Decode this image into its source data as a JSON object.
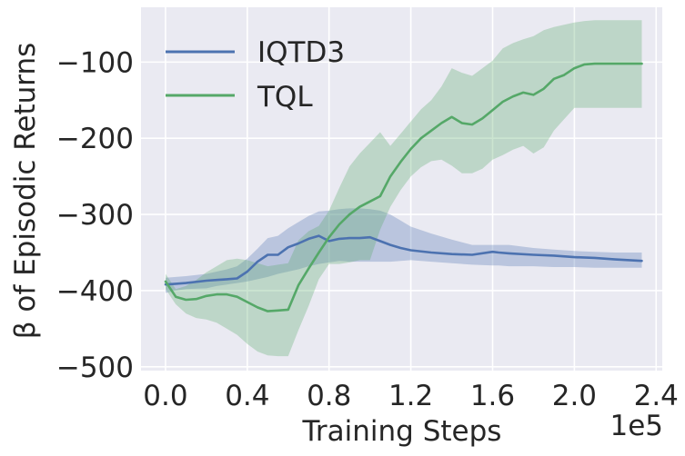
{
  "chart_data": {
    "type": "line",
    "title": "",
    "xlabel": "Training Steps",
    "ylabel": "β of Episodic Returns",
    "x_offset_label": "1e5",
    "xlim": [
      -0.12,
      2.43
    ],
    "ylim": [
      -505,
      -28
    ],
    "x_ticks": [
      0.0,
      0.4,
      0.8,
      1.2,
      1.6,
      2.0,
      2.4
    ],
    "x_tick_labels": [
      "0.0",
      "0.4",
      "0.8",
      "1.2",
      "1.6",
      "2.0",
      "2.4"
    ],
    "y_ticks": [
      -500,
      -400,
      -300,
      -200,
      -100
    ],
    "y_tick_labels": [
      "−500",
      "−400",
      "−300",
      "−200",
      "−100"
    ],
    "grid": true,
    "legend_position": "top-left",
    "series": [
      {
        "name": "IQTD3",
        "color": "#4c72b0",
        "x": [
          0.0,
          0.05,
          0.1,
          0.2,
          0.25,
          0.3,
          0.35,
          0.4,
          0.45,
          0.5,
          0.55,
          0.6,
          0.65,
          0.7,
          0.75,
          0.8,
          0.85,
          0.9,
          0.95,
          1.0,
          1.05,
          1.1,
          1.15,
          1.2,
          1.3,
          1.4,
          1.5,
          1.6,
          1.63,
          1.68,
          1.8,
          1.9,
          2.0,
          2.1,
          2.2,
          2.33
        ],
        "mean": [
          -392,
          -391,
          -390,
          -387,
          -386,
          -385,
          -384,
          -375,
          -362,
          -353,
          -353,
          -343,
          -338,
          -332,
          -328,
          -335,
          -332,
          -331,
          -331,
          -330,
          -335,
          -340,
          -344,
          -347,
          -350,
          -352,
          -353,
          -349,
          -350,
          -351,
          -353,
          -354,
          -356,
          -357,
          -359,
          -361
        ],
        "lower": [
          -403,
          -400,
          -398,
          -397,
          -394,
          -392,
          -390,
          -388,
          -385,
          -382,
          -378,
          -375,
          -372,
          -368,
          -365,
          -363,
          -361,
          -362,
          -362,
          -362,
          -362,
          -362,
          -361,
          -360,
          -362,
          -364,
          -366,
          -367,
          -367,
          -368,
          -368,
          -369,
          -369,
          -370,
          -370,
          -370
        ],
        "upper": [
          -383,
          -382,
          -381,
          -378,
          -375,
          -372,
          -368,
          -358,
          -345,
          -331,
          -328,
          -318,
          -310,
          -302,
          -296,
          -295,
          -293,
          -292,
          -292,
          -293,
          -295,
          -300,
          -308,
          -316,
          -325,
          -333,
          -340,
          -340,
          -340,
          -340,
          -344,
          -346,
          -348,
          -349,
          -350,
          -350
        ]
      },
      {
        "name": "TQL",
        "color": "#55a868",
        "x": [
          0.0,
          0.05,
          0.1,
          0.15,
          0.2,
          0.25,
          0.3,
          0.35,
          0.4,
          0.45,
          0.5,
          0.55,
          0.6,
          0.65,
          0.7,
          0.75,
          0.8,
          0.85,
          0.9,
          0.95,
          1.0,
          1.05,
          1.1,
          1.15,
          1.2,
          1.25,
          1.3,
          1.35,
          1.4,
          1.45,
          1.5,
          1.55,
          1.6,
          1.65,
          1.7,
          1.75,
          1.8,
          1.85,
          1.9,
          1.95,
          2.0,
          2.05,
          2.1,
          2.15,
          2.2,
          2.25,
          2.3,
          2.33
        ],
        "mean": [
          -388,
          -408,
          -412,
          -411,
          -407,
          -405,
          -405,
          -408,
          -415,
          -422,
          -427,
          -426,
          -425,
          -393,
          -371,
          -350,
          -330,
          -313,
          -300,
          -290,
          -283,
          -276,
          -250,
          -231,
          -214,
          -200,
          -190,
          -180,
          -172,
          -180,
          -182,
          -174,
          -163,
          -152,
          -145,
          -140,
          -143,
          -135,
          -122,
          -117,
          -108,
          -103,
          -102,
          -102,
          -102,
          -102,
          -102,
          -102
        ],
        "lower": [
          -398,
          -418,
          -430,
          -436,
          -438,
          -442,
          -450,
          -458,
          -470,
          -480,
          -485,
          -486,
          -486,
          -452,
          -420,
          -385,
          -365,
          -365,
          -363,
          -360,
          -360,
          -320,
          -290,
          -268,
          -250,
          -238,
          -230,
          -228,
          -236,
          -246,
          -246,
          -240,
          -228,
          -222,
          -215,
          -210,
          -220,
          -212,
          -190,
          -175,
          -160,
          -160,
          -160,
          -160,
          -160,
          -160,
          -160,
          -160
        ],
        "upper": [
          -378,
          -398,
          -394,
          -386,
          -376,
          -368,
          -360,
          -358,
          -360,
          -364,
          -368,
          -366,
          -364,
          -334,
          -322,
          -315,
          -295,
          -265,
          -237,
          -220,
          -206,
          -192,
          -210,
          -194,
          -178,
          -162,
          -150,
          -132,
          -108,
          -114,
          -118,
          -108,
          -98,
          -82,
          -75,
          -70,
          -66,
          -58,
          -54,
          -51,
          -48,
          -46,
          -45,
          -45,
          -45,
          -45,
          -45,
          -45
        ]
      }
    ]
  }
}
